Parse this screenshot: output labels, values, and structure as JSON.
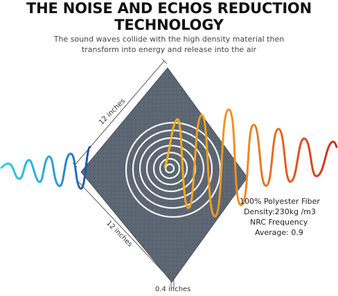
{
  "header": {
    "title_line1": "THE NOISE AND ECHOS REDUCTION",
    "title_line2": "TECHNOLOGY",
    "subtitle_line1": "The sound waves collide with the high density material then",
    "subtitle_line2": "transform into energy and release into the air"
  },
  "dimensions": {
    "top_edge": "12 inches",
    "bottom_edge": "12 inches",
    "thickness": "0.4 inches"
  },
  "specs": {
    "material": "100% Polyester Fiber",
    "density": "Density:230kg /m3",
    "nrc_label": "NRC Frequency",
    "nrc_value": "Average: 0.9"
  },
  "colors": {
    "panel": "#5c6672",
    "rings": "#ffffff",
    "wave_left_start": "#2ad1e3",
    "wave_left_end": "#1f4fa8",
    "wave_right_start": "#f0a020",
    "wave_right_end": "#d0281a"
  }
}
